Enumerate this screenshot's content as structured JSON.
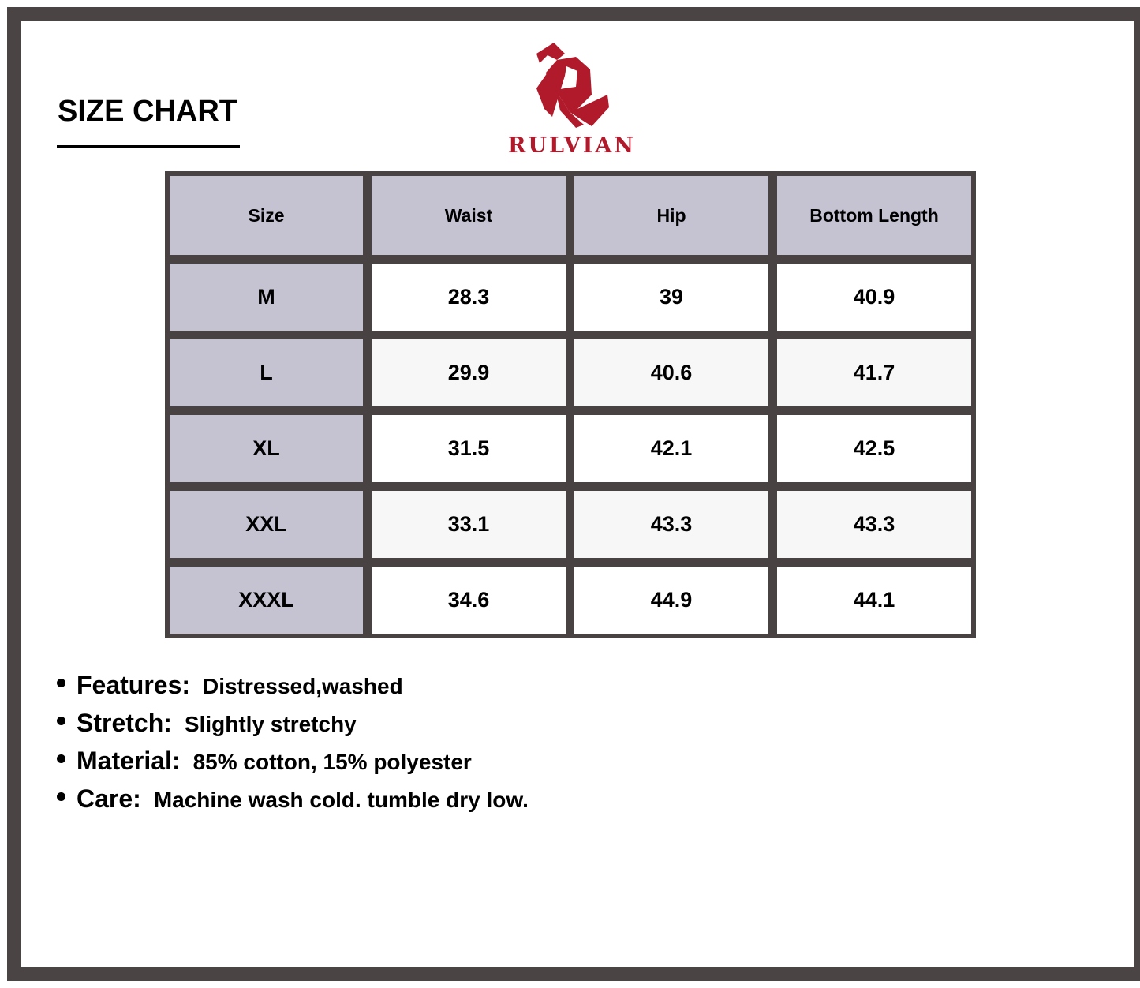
{
  "title": "SIZE CHART",
  "brand": {
    "name": "RULVIAN",
    "color": "#b01a2a"
  },
  "table": {
    "headers": [
      "Size",
      "Waist",
      "Hip",
      "Bottom Length"
    ],
    "rows": [
      [
        "M",
        "28.3",
        "39",
        "40.9"
      ],
      [
        "L",
        "29.9",
        "40.6",
        "41.7"
      ],
      [
        "XL",
        "31.5",
        "42.1",
        "42.5"
      ],
      [
        "XXL",
        "33.1",
        "43.3",
        "43.3"
      ],
      [
        "XXXL",
        "34.6",
        "44.9",
        "44.1"
      ]
    ]
  },
  "notes": [
    {
      "label": "Features:",
      "value": "Distressed,washed"
    },
    {
      "label": "Stretch:",
      "value": "Slightly stretchy"
    },
    {
      "label": "Material:",
      "value": "85% cotton, 15% polyester"
    },
    {
      "label": "Care:",
      "value": "Machine wash cold. tumble dry low."
    }
  ]
}
